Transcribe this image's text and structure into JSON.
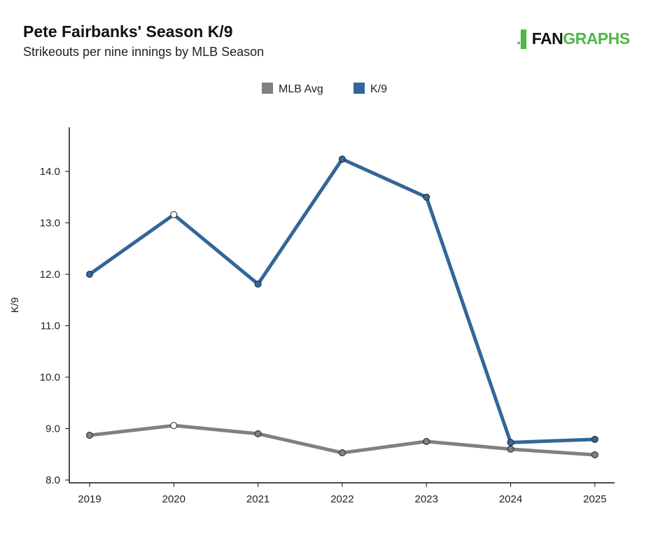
{
  "chart_data": {
    "type": "line",
    "title": "Pete Fairbanks' Season K/9",
    "subtitle": "Strikeouts per nine innings by MLB Season",
    "xlabel": "",
    "ylabel": "K/9",
    "categories": [
      "2019",
      "2020",
      "2021",
      "2022",
      "2023",
      "2024",
      "2025"
    ],
    "ylim": [
      8.0,
      14.8
    ],
    "yticks": [
      "8.0",
      "9.0",
      "10.0",
      "11.0",
      "12.0",
      "13.0",
      "14.0"
    ],
    "legend_position": "top-center",
    "series": [
      {
        "name": "MLB Avg",
        "color": "#808080",
        "values": [
          8.87,
          9.06,
          8.9,
          8.53,
          8.75,
          8.6,
          8.49
        ]
      },
      {
        "name": "K/9",
        "color": "#336699",
        "values": [
          12.0,
          13.16,
          11.81,
          14.24,
          13.5,
          8.73,
          8.79
        ]
      }
    ],
    "highlight_index": 1
  },
  "logo": {
    "text_fan": "FAN",
    "text_graphs": "GRAPHS",
    "brand_color": "#4fb848"
  }
}
